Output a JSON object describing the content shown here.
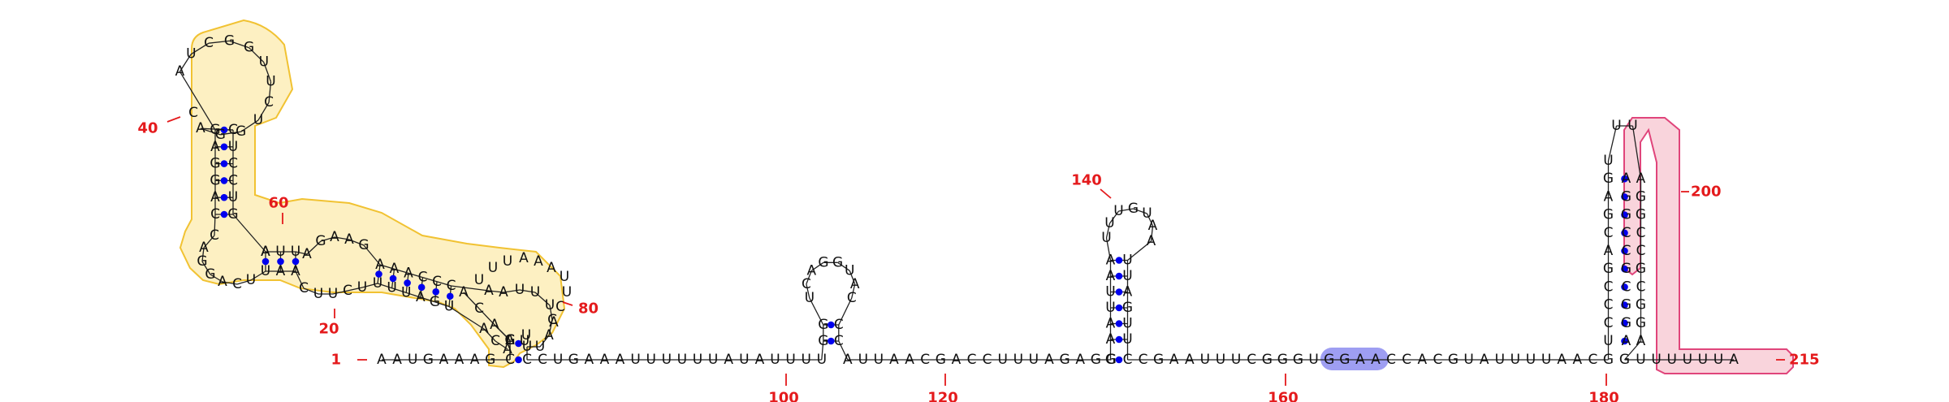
{
  "diagram": {
    "tail_5p": "AAUGAAAG",
    "domain1": {
      "stem_outer_5p": "C",
      "branch1": {
        "side_5p": "AC",
        "stem_5p": "UGACGGAGCC",
        "hairpin": "UAUCUGGUUCUGGA",
        "hairpin_shown": "AUCGGUUCUGGA",
        "stem_3p": "CGCUCCUG",
        "side_3p": "A"
      },
      "branch2_5p": "UUAGAAGA",
      "branch2_3p": "AAACCCAAUUUCAU",
      "branch2_inner": "UAUGAUUUCUUC",
      "closing": "UU"
    },
    "linker1": "CUGAAAUUUUUUAUAUUU",
    "hp2": {
      "stem_5p": "UGG",
      "loop": "UCAGGUAC",
      "stem_3p": "CC"
    },
    "linker2": "AUUAACGACCUUUAGAGG",
    "hp3": {
      "stem_5p": "AAUUAAU",
      "loop": "UUUGUAA",
      "stem_3p": "UUAGUUU"
    },
    "linker3": "CGAAUUUCGGG",
    "highlight_ugga": "UGGA",
    "linker4": "ACCACGUAUUUUAACG",
    "hp4": {
      "stem_5p": "UCCCGACGAGU",
      "loop": "UUU",
      "stem_3p": "AGGCGCCGGA"
    },
    "tail_3p": "UUUUUUA",
    "positions": [
      {
        "label": "1",
        "value": 1
      },
      {
        "label": "20",
        "value": 20
      },
      {
        "label": "40",
        "value": 40
      },
      {
        "label": "60",
        "value": 60
      },
      {
        "label": "80",
        "value": 80
      },
      {
        "label": "100",
        "value": 100
      },
      {
        "label": "120",
        "value": 120
      },
      {
        "label": "140",
        "value": 140
      },
      {
        "label": "160",
        "value": 160
      },
      {
        "label": "180",
        "value": 180
      },
      {
        "label": "200",
        "value": 200
      },
      {
        "label": "215",
        "value": 215
      }
    ],
    "colors": {
      "pair_dot": "#0000ee",
      "number": "#e41a1c",
      "domain1_fill": "#fdf0c2",
      "domain1_stroke": "#f1c232",
      "domain4_fill": "#f9d4dc",
      "domain4_stroke": "#e0457b",
      "ugga_fill": "#9e9ef2"
    }
  }
}
